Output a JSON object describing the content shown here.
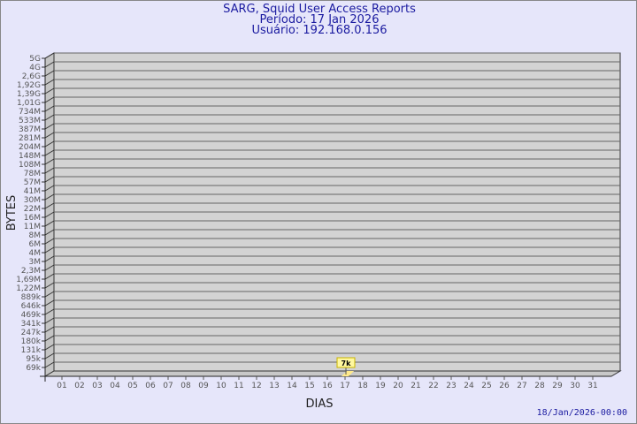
{
  "chart_data": {
    "type": "bar",
    "title": "SARG, Squid User Access Reports",
    "subtitle": [
      "Período: 17 Jan 2026",
      "Usuário: 192.168.0.156"
    ],
    "xlabel": "DIAS",
    "ylabel": "BYTES",
    "y_scale": "log",
    "y_tick_labels": [
      "5G",
      "4G",
      "2,6G",
      "1,92G",
      "1,39G",
      "1,01G",
      "734M",
      "533M",
      "387M",
      "281M",
      "204M",
      "148M",
      "108M",
      "78M",
      "57M",
      "41M",
      "30M",
      "22M",
      "16M",
      "11M",
      "8M",
      "6M",
      "4M",
      "3M",
      "2,3M",
      "1,69M",
      "1,22M",
      "889k",
      "646k",
      "469k",
      "341k",
      "247k",
      "180k",
      "131k",
      "95k",
      "69k"
    ],
    "categories": [
      "01",
      "02",
      "03",
      "04",
      "05",
      "06",
      "07",
      "08",
      "09",
      "10",
      "11",
      "12",
      "13",
      "14",
      "15",
      "16",
      "17",
      "18",
      "19",
      "20",
      "21",
      "22",
      "23",
      "24",
      "25",
      "26",
      "27",
      "28",
      "29",
      "30",
      "31"
    ],
    "bars": [
      {
        "day": "17",
        "value": 7000,
        "label": "7k"
      }
    ],
    "grid": true,
    "colors": {
      "background": "#e6e6fa",
      "plot": "#d3d3d3",
      "bar": "#ffe98a",
      "label_box": "#fff8a0",
      "title": "#1a1aa0"
    }
  },
  "footer": {
    "timestamp": "18/Jan/2026-00:00"
  }
}
